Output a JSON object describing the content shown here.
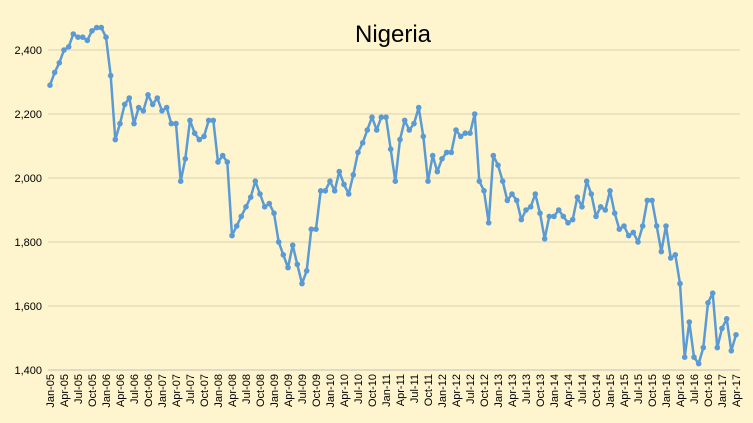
{
  "chart_data": {
    "type": "line",
    "title": "Nigeria",
    "xlabel": "",
    "ylabel": "",
    "ylim": [
      1400,
      2500
    ],
    "yticks": [
      1400,
      1600,
      1800,
      2000,
      2200,
      2400
    ],
    "ytick_labels": [
      "1,400",
      "1,600",
      "1,800",
      "2,000",
      "2,200",
      "2,400"
    ],
    "grid": true,
    "series_color": "#5b9bd5",
    "x_tick_labels": [
      "Jan-05",
      "Apr-05",
      "Jul-05",
      "Oct-05",
      "Jan-06",
      "Apr-06",
      "Jul-06",
      "Oct-06",
      "Jan-07",
      "Apr-07",
      "Jul-07",
      "Oct-07",
      "Jan-08",
      "Apr-08",
      "Jul-08",
      "Oct-08",
      "Jan-09",
      "Apr-09",
      "Jul-09",
      "Oct-09",
      "Jan-10",
      "Apr-10",
      "Jul-10",
      "Oct-10",
      "Jan-11",
      "Apr-11",
      "Jul-11",
      "Oct-11",
      "Jan-12",
      "Apr-12",
      "Jul-12",
      "Oct-12",
      "Jan-13",
      "Apr-13",
      "Jul-13",
      "Oct-13",
      "Jan-14",
      "Apr-14",
      "Jul-14",
      "Oct-14",
      "Jan-15",
      "Apr-15",
      "Jul-15",
      "Oct-15",
      "Jan-16",
      "Apr-16",
      "Jul-16",
      "Oct-16",
      "Jan-17",
      "Apr-17"
    ],
    "values": [
      2290,
      2330,
      2360,
      2400,
      2410,
      2450,
      2440,
      2440,
      2430,
      2460,
      2470,
      2470,
      2440,
      2320,
      2120,
      2170,
      2230,
      2250,
      2170,
      2220,
      2210,
      2260,
      2230,
      2250,
      2210,
      2220,
      2170,
      2170,
      1990,
      2060,
      2180,
      2140,
      2120,
      2130,
      2180,
      2180,
      2050,
      2070,
      2050,
      1820,
      1850,
      1880,
      1910,
      1940,
      1990,
      1950,
      1910,
      1920,
      1890,
      1800,
      1760,
      1720,
      1790,
      1730,
      1670,
      1710,
      1840,
      1840,
      1960,
      1960,
      1990,
      1960,
      2020,
      1980,
      1950,
      2010,
      2080,
      2110,
      2150,
      2190,
      2150,
      2190,
      2190,
      2090,
      1990,
      2120,
      2180,
      2150,
      2170,
      2220,
      2130,
      1990,
      2070,
      2020,
      2060,
      2080,
      2080,
      2150,
      2130,
      2140,
      2140,
      2200,
      1990,
      1960,
      1860,
      2070,
      2040,
      1990,
      1930,
      1950,
      1930,
      1870,
      1900,
      1910,
      1950,
      1890,
      1810,
      1880,
      1880,
      1900,
      1880,
      1860,
      1870,
      1940,
      1910,
      1990,
      1950,
      1880,
      1910,
      1900,
      1960,
      1890,
      1840,
      1850,
      1820,
      1830,
      1800,
      1850,
      1930,
      1930,
      1850,
      1770,
      1850,
      1750,
      1760,
      1670,
      1440,
      1550,
      1440,
      1420,
      1470,
      1610,
      1640,
      1470,
      1530,
      1560,
      1460,
      1510
    ]
  }
}
